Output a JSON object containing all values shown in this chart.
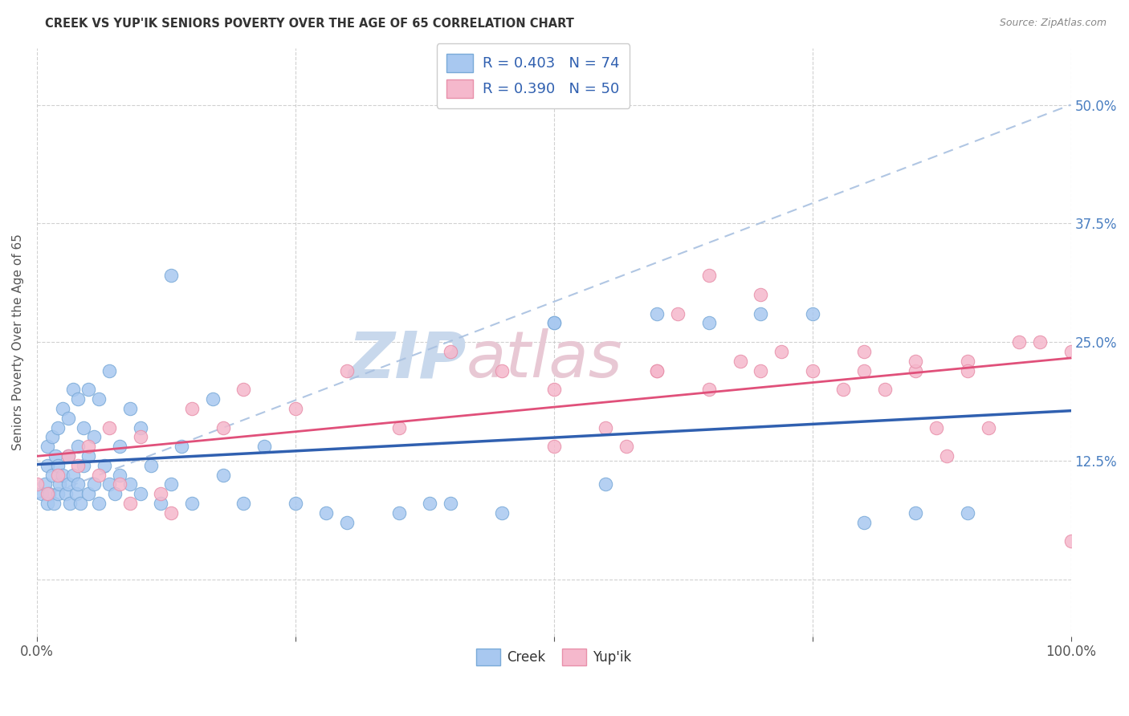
{
  "title": "CREEK VS YUP'IK SENIORS POVERTY OVER THE AGE OF 65 CORRELATION CHART",
  "source": "Source: ZipAtlas.com",
  "ylabel": "Seniors Poverty Over the Age of 65",
  "creek_color": "#a8c8f0",
  "yupik_color": "#f5b8cc",
  "creek_edge_color": "#7aaad8",
  "yupik_edge_color": "#e890aa",
  "creek_line_color": "#3060b0",
  "yupik_line_color": "#e0507a",
  "dashed_line_color": "#a8c0e0",
  "background_color": "#ffffff",
  "creek_r": 0.403,
  "creek_n": 74,
  "yupik_r": 0.39,
  "yupik_n": 50,
  "xlim": [
    0,
    1
  ],
  "ylim": [
    -0.06,
    0.56
  ],
  "ytick_vals": [
    0.0,
    0.125,
    0.25,
    0.375,
    0.5
  ],
  "ytick_labels": [
    "",
    "12.5%",
    "25.0%",
    "37.5%",
    "50.0%"
  ],
  "xtick_vals": [
    0.0,
    0.25,
    0.5,
    0.75,
    1.0
  ],
  "xtick_labels": [
    "0.0%",
    "",
    "",
    "",
    "100.0%"
  ],
  "creek_x": [
    0.005,
    0.008,
    0.01,
    0.01,
    0.01,
    0.012,
    0.015,
    0.015,
    0.016,
    0.018,
    0.02,
    0.02,
    0.02,
    0.022,
    0.025,
    0.025,
    0.028,
    0.03,
    0.03,
    0.03,
    0.032,
    0.035,
    0.035,
    0.038,
    0.04,
    0.04,
    0.04,
    0.042,
    0.045,
    0.045,
    0.05,
    0.05,
    0.05,
    0.055,
    0.055,
    0.06,
    0.06,
    0.065,
    0.07,
    0.07,
    0.075,
    0.08,
    0.08,
    0.09,
    0.09,
    0.1,
    0.1,
    0.11,
    0.12,
    0.13,
    0.14,
    0.15,
    0.17,
    0.18,
    0.2,
    0.22,
    0.25,
    0.28,
    0.3,
    0.35,
    0.38,
    0.4,
    0.45,
    0.5,
    0.55,
    0.6,
    0.65,
    0.7,
    0.75,
    0.8,
    0.85,
    0.9,
    0.5,
    0.13
  ],
  "creek_y": [
    0.09,
    0.1,
    0.08,
    0.12,
    0.14,
    0.09,
    0.11,
    0.15,
    0.08,
    0.13,
    0.09,
    0.12,
    0.16,
    0.1,
    0.11,
    0.18,
    0.09,
    0.1,
    0.13,
    0.17,
    0.08,
    0.11,
    0.2,
    0.09,
    0.1,
    0.14,
    0.19,
    0.08,
    0.12,
    0.16,
    0.09,
    0.13,
    0.2,
    0.1,
    0.15,
    0.08,
    0.19,
    0.12,
    0.1,
    0.22,
    0.09,
    0.11,
    0.14,
    0.1,
    0.18,
    0.09,
    0.16,
    0.12,
    0.08,
    0.1,
    0.14,
    0.08,
    0.19,
    0.11,
    0.08,
    0.14,
    0.08,
    0.07,
    0.06,
    0.07,
    0.08,
    0.08,
    0.07,
    0.27,
    0.1,
    0.28,
    0.27,
    0.28,
    0.28,
    0.06,
    0.07,
    0.07,
    0.27,
    0.32
  ],
  "yupik_x": [
    0.0,
    0.01,
    0.02,
    0.03,
    0.04,
    0.05,
    0.06,
    0.07,
    0.08,
    0.09,
    0.1,
    0.12,
    0.13,
    0.15,
    0.18,
    0.2,
    0.25,
    0.3,
    0.35,
    0.4,
    0.45,
    0.5,
    0.55,
    0.57,
    0.6,
    0.62,
    0.65,
    0.68,
    0.7,
    0.72,
    0.75,
    0.78,
    0.8,
    0.82,
    0.85,
    0.87,
    0.88,
    0.9,
    0.92,
    0.95,
    0.97,
    1.0,
    1.0,
    0.65,
    0.7,
    0.8,
    0.85,
    0.9,
    0.5,
    0.6
  ],
  "yupik_y": [
    0.1,
    0.09,
    0.11,
    0.13,
    0.12,
    0.14,
    0.11,
    0.16,
    0.1,
    0.08,
    0.15,
    0.09,
    0.07,
    0.18,
    0.16,
    0.2,
    0.18,
    0.22,
    0.16,
    0.24,
    0.22,
    0.2,
    0.16,
    0.14,
    0.22,
    0.28,
    0.2,
    0.23,
    0.22,
    0.24,
    0.22,
    0.2,
    0.22,
    0.2,
    0.22,
    0.16,
    0.13,
    0.23,
    0.16,
    0.25,
    0.25,
    0.24,
    0.04,
    0.32,
    0.3,
    0.24,
    0.23,
    0.22,
    0.14,
    0.22
  ],
  "watermark_zip_color": "#c8d8ec",
  "watermark_atlas_color": "#e8c8d4",
  "legend_label_color": "#3060b0",
  "bottom_legend_color": "#333333",
  "right_axis_color": "#4a7fc1",
  "title_color": "#333333",
  "source_color": "#888888"
}
